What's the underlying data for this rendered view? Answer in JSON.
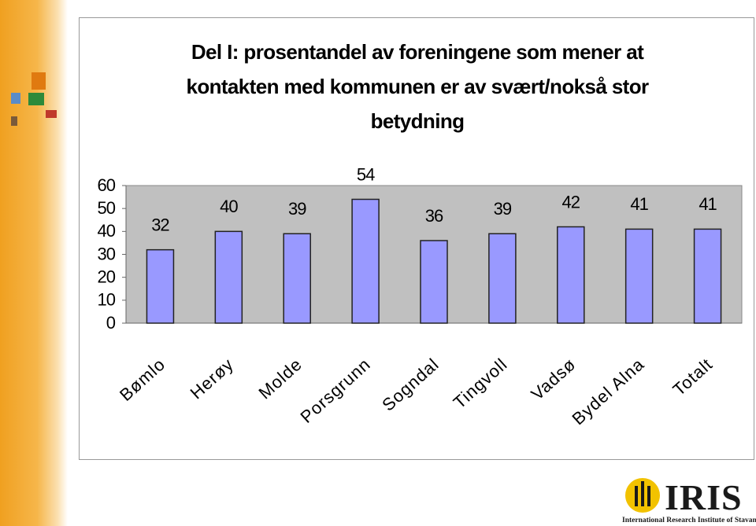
{
  "chart_data": {
    "type": "bar",
    "title": "Del I: prosentandel av foreningene som mener at kontakten med kommunen er av svært/nokså stor betydning",
    "categories": [
      "Bømlo",
      "Herøy",
      "Molde",
      "Porsgrunn",
      "Sogndal",
      "Tingvoll",
      "Vadsø",
      "Bydel Alna",
      "Totalt"
    ],
    "values": [
      32,
      40,
      39,
      54,
      36,
      39,
      42,
      41,
      41
    ],
    "color": "#9999ff",
    "ylim": [
      0,
      60
    ],
    "yticks": [
      0,
      10,
      20,
      30,
      40,
      50,
      60
    ],
    "grid": false
  },
  "logo": {
    "name": "IRIS",
    "tagline": "International Research Institute of Stavanger"
  }
}
